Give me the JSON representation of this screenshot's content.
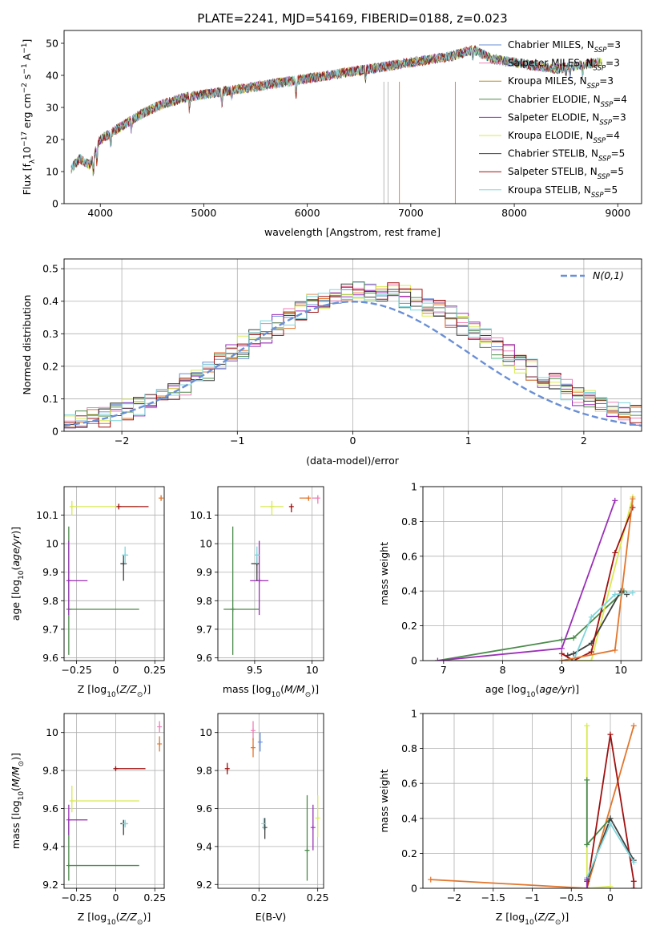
{
  "figure": {
    "title": "PLATE=2241, MJD=54169, FIBERID=0188, z=0.023"
  },
  "colors": {
    "Chabrier MILES": "#6a8fd6",
    "Salpeter MILES": "#ef7fb9",
    "Kroupa MILES": "#c08a2c",
    "Chabrier ELODIE": "#4a8a4a",
    "Salpeter ELODIE": "#9b30b8",
    "Kroupa ELODIE": "#d8ea50",
    "Chabrier STELIB": "#404040",
    "Salpeter STELIB": "#a01010",
    "Kroupa STELIB": "#7fd6dc",
    "model_orange": "#e2762c",
    "normal_curve": "#6a8fd6"
  },
  "chart_data": [
    {
      "id": "spectrum",
      "type": "line",
      "xlabel": "wavelength [Angstrom, rest frame]",
      "ylabel": "Flux [f_λ10^-17 erg cm^-2 s^-1 A^-1]",
      "xlim": [
        3650,
        9230
      ],
      "ylim": [
        0,
        54
      ],
      "xticks": [
        4000,
        5000,
        6000,
        7000,
        8000,
        9000
      ],
      "yticks": [
        0,
        10,
        20,
        30,
        40,
        50
      ],
      "continuum_x": [
        3720,
        3800,
        3900,
        4000,
        4100,
        4200,
        4400,
        4600,
        4800,
        5000,
        5200,
        5400,
        5600,
        5800,
        6000,
        6200,
        6400,
        6600,
        6800,
        7000,
        7200,
        7400,
        7600,
        7800,
        8000,
        8200,
        8400,
        8600,
        8800
      ],
      "continuum_y": [
        11,
        14,
        12,
        20,
        22,
        24,
        28,
        31,
        33,
        34,
        35,
        36,
        37,
        38,
        39,
        40,
        41,
        42,
        43,
        44,
        45,
        46,
        48,
        45,
        44,
        43,
        42,
        43,
        44
      ],
      "legend_position": "upper right",
      "legend": [
        {
          "label": "Chabrier MILES, N",
          "sub": "SSP",
          "tail": "=3"
        },
        {
          "label": "Salpeter MILES, N",
          "sub": "SSP",
          "tail": "=3"
        },
        {
          "label": "Kroupa MILES, N",
          "sub": "SSP",
          "tail": "=3"
        },
        {
          "label": "Chabrier ELODIE, N",
          "sub": "SSP",
          "tail": "=4"
        },
        {
          "label": "Salpeter ELODIE, N",
          "sub": "SSP",
          "tail": "=3"
        },
        {
          "label": "Kroupa ELODIE, N",
          "sub": "SSP",
          "tail": "=4"
        },
        {
          "label": "Chabrier STELIB, N",
          "sub": "SSP",
          "tail": "=5"
        },
        {
          "label": "Salpeter STELIB, N",
          "sub": "SSP",
          "tail": "=5"
        },
        {
          "label": "Kroupa STELIB, N",
          "sub": "SSP",
          "tail": "=5"
        }
      ]
    },
    {
      "id": "residuals",
      "type": "bar",
      "xlabel": "(data-model)/error",
      "ylabel": "Normed distribution",
      "xlim": [
        -2.5,
        2.5
      ],
      "ylim": [
        0,
        0.53
      ],
      "xticks": [
        -2,
        -1,
        0,
        1,
        2
      ],
      "yticks": [
        0.0,
        0.1,
        0.2,
        0.3,
        0.4,
        0.5
      ],
      "bin_width": 0.1,
      "bins_start": -2.5,
      "legend_label": "N(0,1)",
      "legend_position": "upper right",
      "grid": true
    },
    {
      "id": "age_vs_Z",
      "type": "scatter",
      "xlabel": "Z [log10(Z/Z⊙)]",
      "ylabel": "age  [log10(age/yr)]",
      "xlim": [
        -0.33,
        0.31
      ],
      "ylim": [
        9.59,
        10.2
      ],
      "xticks": [
        -0.25,
        0.0,
        0.25
      ],
      "yticks": [
        9.6,
        9.7,
        9.8,
        9.9,
        10.0,
        10.1
      ],
      "grid": true,
      "points": [
        {
          "series": "Kroupa ELODIE",
          "x": -0.28,
          "y": 10.13,
          "xerr": [
            0.0,
            0.42
          ],
          "yerr": [
            0.03,
            0.02
          ]
        },
        {
          "series": "Salpeter STELIB",
          "x": 0.02,
          "y": 10.13,
          "xerr": [
            0.0,
            0.19
          ],
          "yerr": [
            0.01,
            0.01
          ]
        },
        {
          "series": "Chabrier ELODIE",
          "x": -0.3,
          "y": 9.77,
          "xerr": [
            0.0,
            0.45
          ],
          "yerr": [
            0.16,
            0.29
          ]
        },
        {
          "series": "Salpeter ELODIE",
          "x": -0.3,
          "y": 9.87,
          "xerr": [
            0.0,
            0.12
          ],
          "yerr": [
            0.12,
            0.14
          ]
        },
        {
          "series": "Chabrier STELIB",
          "x": 0.05,
          "y": 9.93,
          "xerr": [
            0.02,
            0.02
          ],
          "yerr": [
            0.06,
            0.03
          ]
        },
        {
          "series": "Kroupa STELIB",
          "x": 0.06,
          "y": 9.96,
          "xerr": [
            0.02,
            0.02
          ],
          "yerr": [
            0.03,
            0.03
          ]
        },
        {
          "series": "model_orange",
          "x": 0.29,
          "y": 10.16,
          "xerr": [
            0,
            0
          ],
          "yerr": [
            0.01,
            0.01
          ]
        }
      ]
    },
    {
      "id": "age_vs_mass",
      "type": "scatter",
      "xlabel": "mass [log10(M/M⊙)]",
      "ylabel": "",
      "xlim": [
        9.18,
        10.1
      ],
      "ylim": [
        9.59,
        10.2
      ],
      "xticks": [
        9.5,
        10.0
      ],
      "yticks": [
        9.6,
        9.7,
        9.8,
        9.9,
        10.0,
        10.1
      ],
      "grid": true,
      "points": [
        {
          "series": "Kroupa ELODIE",
          "x": 9.65,
          "y": 10.13,
          "xerr": [
            0.1,
            0.1
          ],
          "yerr": [
            0.03,
            0.02
          ]
        },
        {
          "series": "Salpeter STELIB",
          "x": 9.82,
          "y": 10.13,
          "xerr": [
            0.0,
            0.0
          ],
          "yerr": [
            0.02,
            0.01
          ]
        },
        {
          "series": "Chabrier ELODIE",
          "x": 9.31,
          "y": 9.77,
          "xerr": [
            0.08,
            0.23
          ],
          "yerr": [
            0.16,
            0.29
          ]
        },
        {
          "series": "Salpeter ELODIE",
          "x": 9.54,
          "y": 9.87,
          "xerr": [
            0.08,
            0.08
          ],
          "yerr": [
            0.12,
            0.14
          ]
        },
        {
          "series": "Chabrier STELIB",
          "x": 9.52,
          "y": 9.93,
          "xerr": [
            0.05,
            0.02
          ],
          "yerr": [
            0.06,
            0.03
          ]
        },
        {
          "series": "Kroupa STELIB",
          "x": 9.52,
          "y": 9.96,
          "xerr": [
            0.02,
            0.02
          ],
          "yerr": [
            0.03,
            0.03
          ]
        },
        {
          "series": "Salpeter MILES",
          "x": 10.05,
          "y": 10.16,
          "xerr": [
            0.05,
            0.0
          ],
          "yerr": [
            0.02,
            0.01
          ]
        },
        {
          "series": "model_orange",
          "x": 9.97,
          "y": 10.16,
          "xerr": [
            0.08,
            0.0
          ],
          "yerr": [
            0.01,
            0.0
          ]
        }
      ]
    },
    {
      "id": "weight_vs_age",
      "type": "line",
      "xlabel": "age  [log10(age/yr)]",
      "ylabel": "mass weight",
      "xlim": [
        6.65,
        10.35
      ],
      "ylim": [
        0,
        1.0
      ],
      "xticks": [
        7,
        8,
        9,
        10
      ],
      "yticks": [
        0.0,
        0.2,
        0.4,
        0.6,
        0.8,
        1.0
      ],
      "grid": true,
      "series": [
        {
          "name": "Chabrier ELODIE",
          "x": [
            6.9,
            9.0,
            9.2,
            10.05
          ],
          "y": [
            0.0,
            0.12,
            0.13,
            0.4
          ]
        },
        {
          "name": "Salpeter ELODIE",
          "x": [
            6.9,
            9.0,
            9.9
          ],
          "y": [
            0.0,
            0.07,
            0.92
          ]
        },
        {
          "name": "Kroupa ELODIE",
          "x": [
            9.0,
            9.5,
            10.2
          ],
          "y": [
            0.0,
            0.0,
            0.94
          ]
        },
        {
          "name": "Chabrier STELIB",
          "x": [
            9.1,
            9.2,
            9.5,
            10.0,
            10.1
          ],
          "y": [
            0.03,
            0.04,
            0.1,
            0.4,
            0.38
          ]
        },
        {
          "name": "Salpeter STELIB",
          "x": [
            9.0,
            9.2,
            9.5,
            9.9,
            10.2
          ],
          "y": [
            0.04,
            0.0,
            0.05,
            0.62,
            0.88
          ]
        },
        {
          "name": "Kroupa STELIB",
          "x": [
            9.2,
            9.5,
            9.9,
            10.2
          ],
          "y": [
            0.0,
            0.25,
            0.38,
            0.39
          ]
        },
        {
          "name": "model_orange",
          "x": [
            9.0,
            9.9,
            10.2
          ],
          "y": [
            0.0,
            0.06,
            0.93
          ]
        }
      ]
    },
    {
      "id": "mass_vs_Z",
      "type": "scatter",
      "xlabel": "Z [log10(Z/Z⊙)]",
      "ylabel": "mass [log10(M/M⊙)]",
      "xlim": [
        -0.33,
        0.31
      ],
      "ylim": [
        9.18,
        10.1
      ],
      "xticks": [
        -0.25,
        0.0,
        0.25
      ],
      "yticks": [
        9.2,
        9.4,
        9.6,
        9.8,
        10.0
      ],
      "grid": true,
      "points": [
        {
          "series": "Kroupa ELODIE",
          "x": -0.28,
          "y": 9.64,
          "xerr": [
            0.0,
            0.43
          ],
          "yerr": [
            0.06,
            0.08
          ]
        },
        {
          "series": "Salpeter STELIB",
          "x": 0.0,
          "y": 9.81,
          "xerr": [
            0.0,
            0.19
          ],
          "yerr": [
            0.01,
            0.01
          ]
        },
        {
          "series": "Chabrier ELODIE",
          "x": -0.3,
          "y": 9.3,
          "xerr": [
            0.0,
            0.45
          ],
          "yerr": [
            0.08,
            0.23
          ]
        },
        {
          "series": "Salpeter ELODIE",
          "x": -0.3,
          "y": 9.54,
          "xerr": [
            0.0,
            0.12
          ],
          "yerr": [
            0.08,
            0.08
          ]
        },
        {
          "series": "Chabrier STELIB",
          "x": 0.05,
          "y": 9.52,
          "xerr": [
            0.02,
            0.02
          ],
          "yerr": [
            0.06,
            0.02
          ]
        },
        {
          "series": "Kroupa STELIB",
          "x": 0.06,
          "y": 9.52,
          "xerr": [
            0.02,
            0.02
          ],
          "yerr": [
            0.02,
            0.02
          ]
        },
        {
          "series": "Salpeter MILES",
          "x": 0.28,
          "y": 10.03,
          "xerr": [
            0,
            0
          ],
          "yerr": [
            0.03,
            0.03
          ]
        },
        {
          "series": "model_orange",
          "x": 0.28,
          "y": 9.94,
          "xerr": [
            0,
            0
          ],
          "yerr": [
            0.04,
            0.04
          ]
        }
      ]
    },
    {
      "id": "mass_vs_ebv",
      "type": "scatter",
      "xlabel": "E(B-V)",
      "ylabel": "",
      "xlim": [
        0.165,
        0.255
      ],
      "ylim": [
        9.18,
        10.1
      ],
      "xticks": [
        0.2,
        0.25
      ],
      "yticks": [
        9.2,
        9.4,
        9.6,
        9.8,
        10.0
      ],
      "grid": true,
      "points": [
        {
          "series": "Salpeter STELIB",
          "x": 0.173,
          "y": 9.81,
          "yerr": [
            0.03,
            0.03
          ]
        },
        {
          "series": "Salpeter MILES",
          "x": 0.195,
          "y": 10.01,
          "yerr": [
            0.05,
            0.05
          ]
        },
        {
          "series": "model_orange",
          "x": 0.195,
          "y": 9.92,
          "yerr": [
            0.05,
            0.05
          ]
        },
        {
          "series": "Chabrier MILES",
          "x": 0.201,
          "y": 9.95,
          "yerr": [
            0.05,
            0.05
          ]
        },
        {
          "series": "Chabrier STELIB",
          "x": 0.205,
          "y": 9.5,
          "yerr": [
            0.06,
            0.05
          ]
        },
        {
          "series": "Kroupa STELIB",
          "x": 0.204,
          "y": 9.52,
          "yerr": [
            0.03,
            0.03
          ]
        },
        {
          "series": "Chabrier ELODIE",
          "x": 0.241,
          "y": 9.38,
          "yerr": [
            0.16,
            0.29
          ]
        },
        {
          "series": "Salpeter ELODIE",
          "x": 0.246,
          "y": 9.5,
          "yerr": [
            0.12,
            0.12
          ]
        },
        {
          "series": "Kroupa ELODIE",
          "x": 0.25,
          "y": 9.55,
          "yerr": [
            0.1,
            0.12
          ]
        }
      ]
    },
    {
      "id": "weight_vs_Z",
      "type": "line",
      "xlabel": "Z [log10(Z/Z⊙)]",
      "ylabel": "mass weight",
      "xlim": [
        -2.4,
        0.4
      ],
      "ylim": [
        0,
        1.0
      ],
      "xticks": [
        -2.0,
        -1.5,
        -1.0,
        -0.5,
        0.0
      ],
      "yticks": [
        0.0,
        0.2,
        0.4,
        0.6,
        0.8,
        1.0
      ],
      "grid": true,
      "series": [
        {
          "name": "model_orange",
          "x": [
            -2.3,
            -0.3,
            0.3
          ],
          "y": [
            0.05,
            0.0,
            0.93
          ]
        },
        {
          "name": "Kroupa ELODIE",
          "x": [
            -0.3,
            -0.3,
            0.0
          ],
          "y": [
            0.93,
            0.0,
            0.01
          ]
        },
        {
          "name": "Chabrier ELODIE",
          "x": [
            -0.3,
            -0.3,
            0.0
          ],
          "y": [
            0.62,
            0.25,
            0.4
          ]
        },
        {
          "name": "Salpeter STELIB",
          "x": [
            -0.3,
            0.0,
            0.3,
            0.3
          ],
          "y": [
            0.0,
            0.88,
            0.04,
            0.0
          ]
        },
        {
          "name": "Chabrier STELIB",
          "x": [
            -0.3,
            0.0,
            0.3
          ],
          "y": [
            0.04,
            0.4,
            0.16
          ]
        },
        {
          "name": "Kroupa STELIB",
          "x": [
            -0.3,
            0.0,
            0.3
          ],
          "y": [
            0.06,
            0.37,
            0.15
          ]
        },
        {
          "name": "Salpeter ELODIE",
          "x": [
            -0.3,
            -0.3
          ],
          "y": [
            0.0,
            0.05
          ]
        }
      ]
    }
  ]
}
